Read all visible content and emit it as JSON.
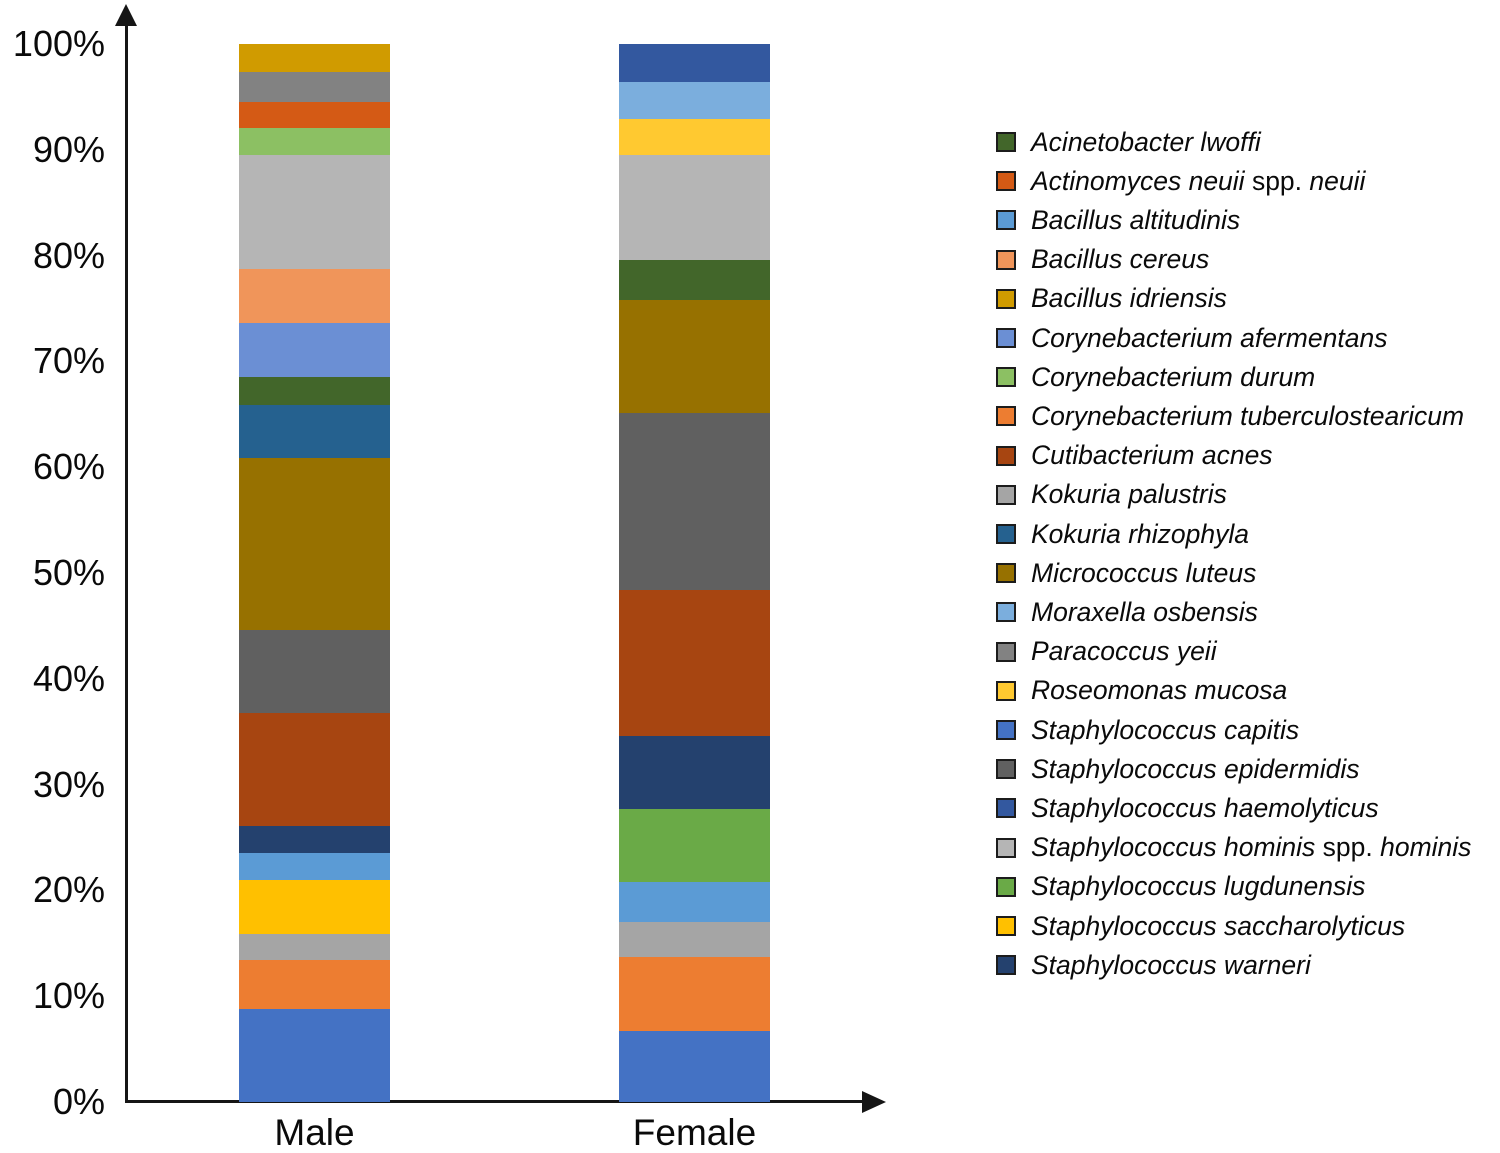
{
  "chart_data": {
    "type": "bar",
    "stacked": true,
    "orientation": "vertical",
    "value_unit": "percent",
    "title": "",
    "xlabel": "",
    "ylabel": "",
    "ylim": [
      0,
      100
    ],
    "grid": false,
    "legend_position": "right",
    "categories": [
      "Male",
      "Female"
    ],
    "y_ticks": [
      "0%",
      "10%",
      "20%",
      "30%",
      "40%",
      "50%",
      "60%",
      "70%",
      "80%",
      "90%",
      "100%"
    ],
    "series": [
      {
        "key": "capitis",
        "species": "Staphylococcus capitis",
        "color": "#4472C4",
        "values": [
          8.8,
          6.7
        ]
      },
      {
        "key": "tuberculostearicum",
        "species": "Corynebacterium tuberculostearicum",
        "color": "#ED7D31",
        "values": [
          4.6,
          7.0
        ]
      },
      {
        "key": "palustris",
        "species": "Kokuria palustris",
        "color": "#A5A5A5",
        "values": [
          2.5,
          3.3
        ]
      },
      {
        "key": "saccharolyticus",
        "species": "Staphylococcus saccharolyticus",
        "color": "#FFC000",
        "values": [
          5.1,
          0
        ]
      },
      {
        "key": "altitudinis",
        "species": "Bacillus altitudinis",
        "color": "#5B9BD5",
        "values": [
          2.5,
          3.8
        ]
      },
      {
        "key": "lugdunensis",
        "species": "Staphylococcus lugdunensis",
        "color": "#6AAA47",
        "values": [
          0,
          6.9
        ]
      },
      {
        "key": "warneri",
        "species": "Staphylococcus warneri",
        "color": "#24416E",
        "values": [
          2.6,
          6.9
        ]
      },
      {
        "key": "acnes",
        "species": "Cutibacterium acnes",
        "color": "#A74511",
        "values": [
          10.7,
          13.8
        ]
      },
      {
        "key": "epidermidis",
        "species": "Staphylococcus epidermidis",
        "color": "#606060",
        "values": [
          7.8,
          16.7
        ]
      },
      {
        "key": "luteus",
        "species": "Micrococcus luteus",
        "color": "#977100",
        "values": [
          16.3,
          10.7
        ]
      },
      {
        "key": "rhizophyla",
        "species": "Kokuria rhizophyla",
        "color": "#25618F",
        "values": [
          5.0,
          0
        ]
      },
      {
        "key": "lwoffi",
        "species": "Acinetobacter lwoffi",
        "color": "#42662A",
        "values": [
          2.6,
          3.8
        ]
      },
      {
        "key": "afermentans",
        "species": "Corynebacterium afermentans",
        "color": "#6B8FD4",
        "values": [
          5.1,
          0
        ]
      },
      {
        "key": "cereus",
        "species": "Bacillus cereus",
        "color": "#F0955A",
        "values": [
          5.1,
          0
        ]
      },
      {
        "key": "hominis",
        "species": "Staphylococcus hominis spp. hominis",
        "color": "#B5B5B5",
        "values": [
          10.8,
          9.9
        ]
      },
      {
        "key": "durum",
        "species": "Corynebacterium durum",
        "color": "#8CC063",
        "values": [
          2.6,
          0
        ]
      },
      {
        "key": "neuii",
        "species": "Actinomyces neuii spp. neuii",
        "color": "#D45A15",
        "values": [
          2.4,
          0
        ]
      },
      {
        "key": "yeii",
        "species": "Paracoccus yeii",
        "color": "#828282",
        "values": [
          2.9,
          0
        ]
      },
      {
        "key": "idriensis",
        "species": "Bacillus idriensis",
        "color": "#D09B00",
        "values": [
          2.6,
          0
        ]
      },
      {
        "key": "mucosa",
        "species": "Roseomonas mucosa",
        "color": "#FFC930",
        "values": [
          0,
          3.4
        ]
      },
      {
        "key": "osbensis",
        "species": "Moraxella osbensis",
        "color": "#7BAEDD",
        "values": [
          0,
          3.5
        ]
      },
      {
        "key": "haemolyticus",
        "species": "Staphylococcus haemolyticus",
        "color": "#33589F",
        "values": [
          0,
          3.6
        ]
      }
    ],
    "legend": [
      {
        "key": "lwoffi",
        "runs": [
          {
            "t": "Acinetobacter lwoffi",
            "i": true
          }
        ]
      },
      {
        "key": "neuii",
        "runs": [
          {
            "t": "Actinomyces neuii ",
            "i": true
          },
          {
            "t": "spp. ",
            "i": false
          },
          {
            "t": "neuii",
            "i": true
          }
        ]
      },
      {
        "key": "altitudinis",
        "runs": [
          {
            "t": "Bacillus altitudinis",
            "i": true
          }
        ]
      },
      {
        "key": "cereus",
        "runs": [
          {
            "t": "Bacillus cereus",
            "i": true
          }
        ]
      },
      {
        "key": "idriensis",
        "runs": [
          {
            "t": "Bacillus idriensis",
            "i": true
          }
        ]
      },
      {
        "key": "afermentans",
        "runs": [
          {
            "t": "Corynebacterium afermentans",
            "i": true
          }
        ]
      },
      {
        "key": "durum",
        "runs": [
          {
            "t": "Corynebacterium durum",
            "i": true
          }
        ]
      },
      {
        "key": "tuberculostearicum",
        "runs": [
          {
            "t": "Corynebacterium tuberculostearicum",
            "i": true
          }
        ]
      },
      {
        "key": "acnes",
        "runs": [
          {
            "t": "Cutibacterium acnes",
            "i": true
          }
        ]
      },
      {
        "key": "palustris",
        "runs": [
          {
            "t": "Kokuria palustris",
            "i": true
          }
        ]
      },
      {
        "key": "rhizophyla",
        "runs": [
          {
            "t": "Kokuria rhizophyla",
            "i": true
          }
        ]
      },
      {
        "key": "luteus",
        "runs": [
          {
            "t": "Micrococcus luteus",
            "i": true
          }
        ]
      },
      {
        "key": "osbensis",
        "runs": [
          {
            "t": "Moraxella osbensis",
            "i": true
          }
        ]
      },
      {
        "key": "yeii",
        "runs": [
          {
            "t": "Paracoccus yeii",
            "i": true
          }
        ]
      },
      {
        "key": "mucosa",
        "runs": [
          {
            "t": "Roseomonas mucosa",
            "i": true
          }
        ]
      },
      {
        "key": "capitis",
        "runs": [
          {
            "t": "Staphylococcus capitis",
            "i": true
          }
        ]
      },
      {
        "key": "epidermidis",
        "runs": [
          {
            "t": "Staphylococcus epidermidis",
            "i": true
          }
        ]
      },
      {
        "key": "haemolyticus",
        "runs": [
          {
            "t": "Staphylococcus haemolyticus",
            "i": true
          }
        ]
      },
      {
        "key": "hominis",
        "runs": [
          {
            "t": "Staphylococcus hominis ",
            "i": true
          },
          {
            "t": "spp. ",
            "i": false
          },
          {
            "t": "hominis",
            "i": true
          }
        ]
      },
      {
        "key": "lugdunensis",
        "runs": [
          {
            "t": "Staphylococcus lugdunensis",
            "i": true
          }
        ]
      },
      {
        "key": "saccharolyticus",
        "runs": [
          {
            "t": "Staphylococcus saccharolyticus",
            "i": true
          }
        ]
      },
      {
        "key": "warneri",
        "runs": [
          {
            "t": "Staphylococcus warneri",
            "i": true
          }
        ]
      }
    ]
  },
  "layout_labels": {
    "male": "Male",
    "female": "Female"
  }
}
